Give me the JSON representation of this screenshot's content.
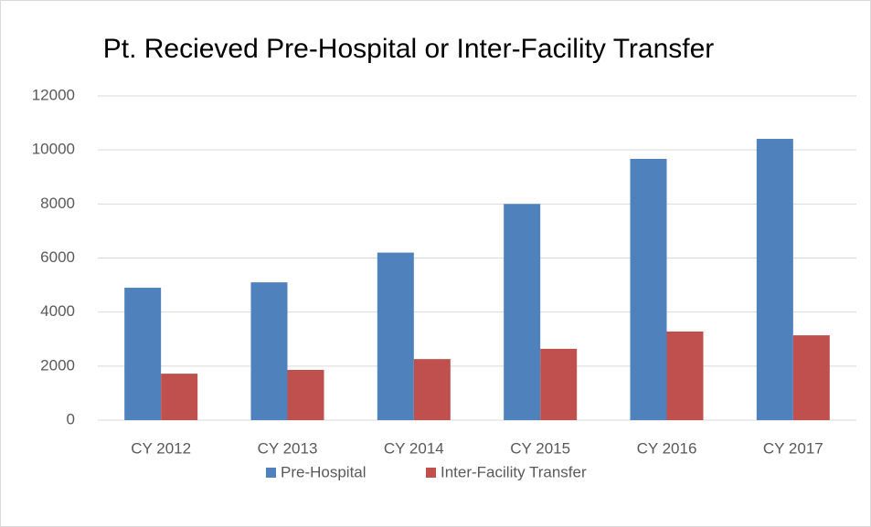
{
  "chart_data": {
    "type": "bar",
    "title": "Pt. Recieved Pre-Hospital or Inter-Facility Transfer",
    "categories": [
      "CY 2012",
      "CY 2013",
      "CY 2014",
      "CY 2015",
      "CY 2016",
      "CY 2017"
    ],
    "series": [
      {
        "name": "Pre-Hospital",
        "color": "#4f81bd",
        "values": [
          4900,
          5100,
          6200,
          8000,
          9670,
          10410
        ]
      },
      {
        "name": "Inter-Facility Transfer",
        "color": "#c0504d",
        "values": [
          1720,
          1860,
          2260,
          2640,
          3280,
          3140
        ]
      }
    ],
    "ylim": [
      0,
      12000
    ],
    "yticks": [
      0,
      2000,
      4000,
      6000,
      8000,
      10000,
      12000
    ],
    "grid": true,
    "legend": "bottom"
  }
}
